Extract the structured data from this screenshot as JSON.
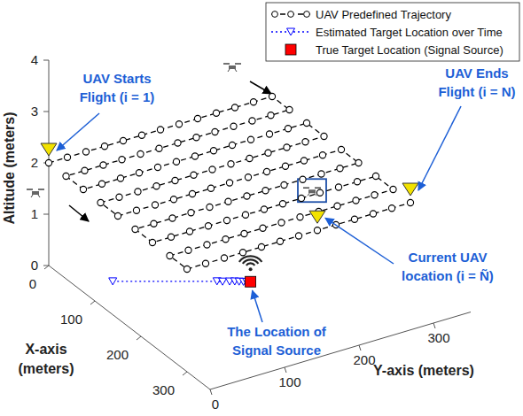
{
  "chart_data": {
    "type": "line3d",
    "xlabel": [
      "X-axis",
      "(meters)"
    ],
    "ylabel": "Y-axis (meters)",
    "zlabel": "Altitude (meters)",
    "xlim": [
      0,
      350
    ],
    "ylim": [
      0,
      350
    ],
    "zlim": [
      0,
      4
    ],
    "xticks": [
      0,
      100,
      200,
      300
    ],
    "yticks": [
      0,
      100,
      200,
      300
    ],
    "zticks": [
      0,
      1,
      2,
      3,
      4
    ],
    "grid": false,
    "legend": "upper right",
    "series": [
      {
        "name": "UAV Predefined Trajectory",
        "color": "#000000",
        "marker": "circle",
        "line_style": "dashed",
        "x": [
          0,
          0,
          0,
          0,
          0,
          0,
          0,
          0,
          0,
          0,
          0,
          0,
          0,
          37.5,
          37.5,
          37.5,
          37.5,
          37.5,
          37.5,
          37.5,
          37.5,
          37.5,
          37.5,
          37.5,
          37.5,
          37.5,
          75,
          75,
          75,
          75,
          75,
          75,
          75,
          75,
          75,
          75,
          75,
          75,
          75,
          112.5,
          112.5,
          112.5,
          112.5,
          112.5,
          112.5,
          112.5,
          112.5,
          112.5,
          112.5,
          112.5,
          112.5,
          112.5,
          150,
          150,
          150,
          150,
          150,
          150,
          150,
          150,
          150,
          150,
          150,
          150,
          150,
          187.5,
          187.5,
          187.5,
          187.5,
          187.5,
          187.5,
          187.5,
          187.5,
          187.5,
          187.5,
          187.5,
          187.5,
          187.5,
          225,
          225,
          225,
          225,
          225,
          225,
          225,
          225,
          225,
          225,
          225,
          225,
          225,
          262.5,
          262.5,
          262.5,
          262.5,
          262.5,
          262.5,
          262.5,
          262.5,
          262.5,
          262.5,
          262.5,
          262.5,
          262.5,
          300,
          300,
          300,
          300,
          300,
          300,
          300,
          300,
          300,
          300,
          300,
          300,
          300
        ],
        "y": [
          0,
          25,
          50,
          75,
          100,
          125,
          150,
          175,
          200,
          225,
          250,
          275,
          300,
          300,
          275,
          250,
          225,
          200,
          175,
          150,
          125,
          100,
          75,
          50,
          25,
          0,
          0,
          25,
          50,
          75,
          100,
          125,
          150,
          175,
          200,
          225,
          250,
          275,
          300,
          300,
          275,
          250,
          225,
          200,
          175,
          150,
          125,
          100,
          75,
          50,
          25,
          0,
          0,
          25,
          50,
          75,
          100,
          125,
          150,
          175,
          200,
          225,
          250,
          275,
          300,
          300,
          275,
          250,
          225,
          200,
          175,
          150,
          125,
          100,
          75,
          50,
          25,
          0,
          0,
          25,
          50,
          75,
          100,
          125,
          150,
          175,
          200,
          225,
          250,
          275,
          300,
          300,
          275,
          250,
          225,
          200,
          175,
          150,
          125,
          100,
          75,
          50,
          25,
          0,
          0,
          25,
          50,
          75,
          100,
          125,
          150,
          175,
          200,
          225,
          250,
          275,
          300
        ],
        "z": [
          2,
          2,
          2,
          2,
          2,
          2,
          2,
          2,
          2,
          2,
          2,
          2,
          2,
          2,
          2,
          2,
          2,
          2,
          2,
          2,
          2,
          2,
          2,
          2,
          2,
          2,
          2,
          2,
          2,
          2,
          2,
          2,
          2,
          2,
          2,
          2,
          2,
          2,
          2,
          2,
          2,
          2,
          2,
          2,
          2,
          2,
          2,
          2,
          2,
          2,
          2,
          2,
          2,
          2,
          2,
          2,
          2,
          2,
          2,
          2,
          2,
          2,
          2,
          2,
          2,
          2,
          2,
          2,
          2,
          2,
          2,
          2,
          2,
          2,
          2,
          2,
          2,
          2,
          2,
          2,
          2,
          2,
          2,
          2,
          2,
          2,
          2,
          2,
          2,
          2,
          2,
          2,
          2,
          2,
          2,
          2,
          2,
          2,
          2,
          2,
          2,
          2,
          2,
          2,
          2,
          2,
          2,
          2,
          2,
          2,
          2,
          2,
          2,
          2,
          2,
          2,
          2
        ]
      },
      {
        "name": "Estimated Target Location over Time",
        "color": "#0000ff",
        "marker": "triangle",
        "line_style": "dotted",
        "x": [
          71,
          134,
          138,
          142,
          145,
          148,
          151,
          153
        ],
        "y": [
          42,
          143,
          148,
          155,
          160,
          164,
          168,
          171
        ],
        "z": [
          0,
          0,
          0,
          0,
          0,
          0,
          0,
          0
        ]
      },
      {
        "name": "True Target Location (Signal Source)",
        "color": "#ff0000",
        "marker": "square",
        "line_style": "none",
        "x": [
          155
        ],
        "y": [
          175
        ],
        "z": [
          0
        ]
      }
    ],
    "annotations": [
      {
        "text": [
          "UAV Starts",
          "Flight (i = 1)"
        ],
        "x": 0,
        "y": 0,
        "z": 2,
        "color": "#1d5fd6"
      },
      {
        "text": [
          "UAV Ends",
          "Flight (i = N)"
        ],
        "x": 300,
        "y": 300,
        "z": 2,
        "color": "#1d5fd6"
      },
      {
        "text": [
          "Current UAV",
          "location (i = Ñ)"
        ],
        "x": 300,
        "y": 175,
        "z": 2,
        "color": "#1d5fd6"
      },
      {
        "text": [
          "The Location of",
          "Signal Source"
        ],
        "x": 155,
        "y": 175,
        "z": 0,
        "color": "#1d5fd6"
      }
    ]
  }
}
